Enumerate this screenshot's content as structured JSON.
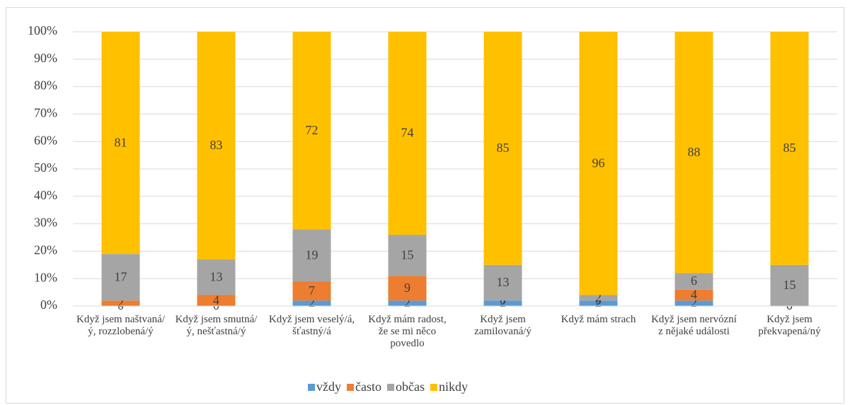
{
  "chart_data": {
    "type": "stacked_bar_100",
    "categories": [
      "Když jsem naštvaná/ý, rozzlobená/ý",
      "Když jsem smutná/ý, nešťastná/ý",
      "Když jsem veselý/á, šťastný/á",
      "Když mám radost, že se mi něco povedlo",
      "Když jsem zamilovaná/ý",
      "Když mám strach",
      "Když jsem nervózní z nějaké události",
      "Když jsem překvapená/ný"
    ],
    "series": [
      {
        "name": "vždy",
        "color": "#5b9bd5",
        "values": [
          0,
          0,
          2,
          2,
          2,
          2,
          2,
          0
        ]
      },
      {
        "name": "často",
        "color": "#ed7d31",
        "values": [
          2,
          4,
          7,
          9,
          0,
          0,
          4,
          0
        ]
      },
      {
        "name": "občas",
        "color": "#a5a5a5",
        "values": [
          17,
          13,
          19,
          15,
          13,
          2,
          6,
          15
        ]
      },
      {
        "name": "nikdy",
        "color": "#ffc000",
        "values": [
          81,
          83,
          72,
          74,
          85,
          96,
          88,
          85
        ]
      }
    ],
    "ylim": [
      0,
      100
    ],
    "yticks": [
      {
        "value": 0,
        "label": "0%"
      },
      {
        "value": 10,
        "label": "10%"
      },
      {
        "value": 20,
        "label": "20%"
      },
      {
        "value": 30,
        "label": "30%"
      },
      {
        "value": 40,
        "label": "40%"
      },
      {
        "value": 50,
        "label": "50%"
      },
      {
        "value": 60,
        "label": "60%"
      },
      {
        "value": 70,
        "label": "70%"
      },
      {
        "value": 80,
        "label": "80%"
      },
      {
        "value": 90,
        "label": "90%"
      },
      {
        "value": 100,
        "label": "100%"
      }
    ],
    "grid": true,
    "legend": "bottom"
  }
}
